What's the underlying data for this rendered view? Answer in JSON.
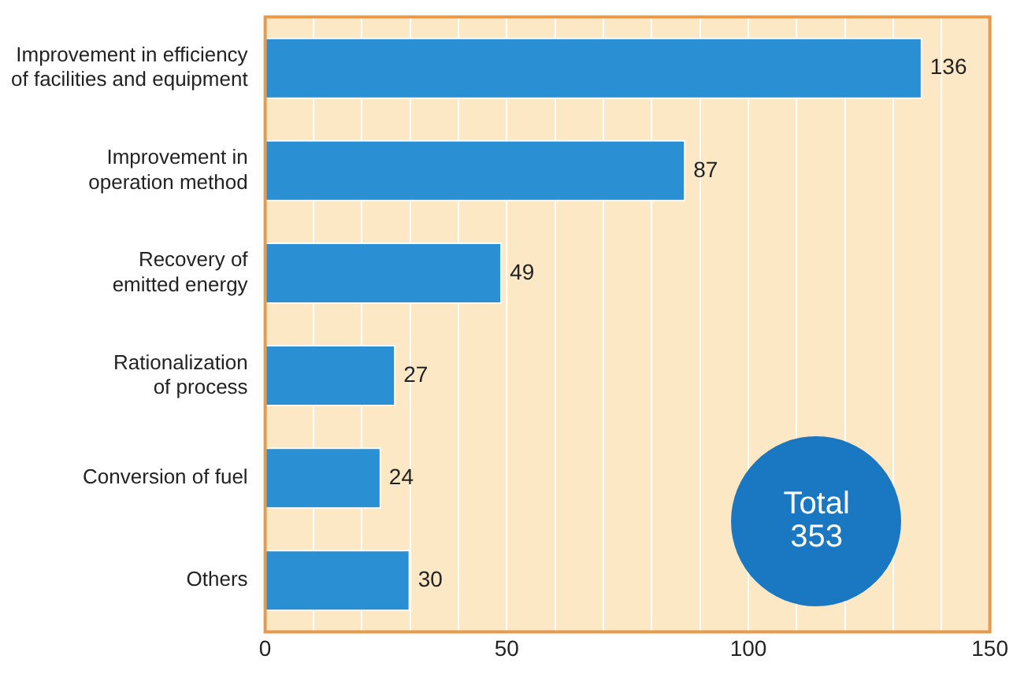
{
  "chart_data": {
    "type": "bar",
    "orientation": "horizontal",
    "categories": [
      "Improvement in efficiency of facilities and equipment",
      "Improvement in operation method",
      "Recovery of emitted energy",
      "Rationalization of process",
      "Conversion of fuel",
      "Others"
    ],
    "values": [
      136,
      87,
      49,
      27,
      24,
      30
    ],
    "color": "#2b8fd3",
    "xlim": [
      0,
      150
    ],
    "xticks": [
      0,
      {
        "value": 10,
        "label": null
      },
      {
        "value": 20,
        "label": null
      },
      {
        "value": 30,
        "label": null
      },
      {
        "value": 40,
        "label": null
      },
      50,
      {
        "value": 60,
        "label": null
      },
      {
        "value": 70,
        "label": null
      },
      {
        "value": 80,
        "label": null
      },
      {
        "value": 90,
        "label": null
      },
      100,
      {
        "value": 110,
        "label": null
      },
      {
        "value": 120,
        "label": null
      },
      {
        "value": 130,
        "label": null
      },
      {
        "value": 140,
        "label": null
      },
      150
    ],
    "grid": "x",
    "data_labels": true,
    "legend": false,
    "annotations": [
      "Total\n353"
    ]
  }
}
